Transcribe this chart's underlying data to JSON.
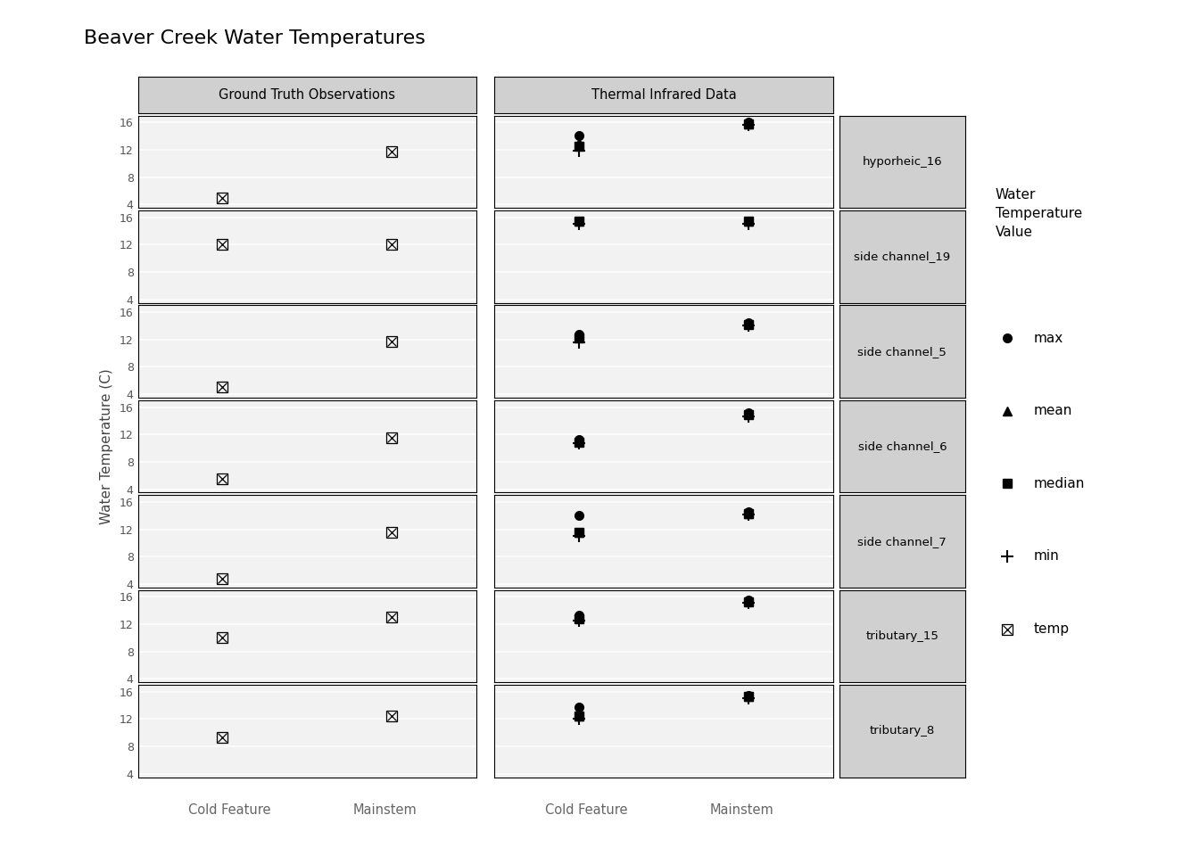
{
  "title": "Beaver Creek Water Temperatures",
  "ylabel": "Water Temperature (C)",
  "facet_col1": "Ground Truth Observations",
  "facet_col2": "Thermal Infrared Data",
  "rows": [
    "hyporheic_16",
    "side channel_19",
    "side channel_5",
    "side channel_6",
    "side channel_7",
    "tributary_15",
    "tributary_8"
  ],
  "ylim": [
    3.5,
    17.0
  ],
  "yticks": [
    4,
    8,
    12,
    16
  ],
  "panel_bg": "#f2f2f2",
  "strip_bg": "#d0d0d0",
  "header_bg": "#d0d0d0",
  "grid_color": "#ffffff",
  "data_gt": {
    "hyporheic_16": {
      "Cold Feature": {
        "temp": 5.0
      },
      "Mainstem": {
        "temp": 11.7
      }
    },
    "side channel_19": {
      "Cold Feature": {
        "temp": 12.0
      },
      "Mainstem": {
        "temp": 12.0
      }
    },
    "side channel_5": {
      "Cold Feature": {
        "temp": 5.0
      },
      "Mainstem": {
        "temp": 11.7
      }
    },
    "side channel_6": {
      "Cold Feature": {
        "temp": 5.5
      },
      "Mainstem": {
        "temp": 11.5
      }
    },
    "side channel_7": {
      "Cold Feature": {
        "temp": 4.8
      },
      "Mainstem": {
        "temp": 11.5
      }
    },
    "tributary_15": {
      "Cold Feature": {
        "temp": 10.0
      },
      "Mainstem": {
        "temp": 13.0
      }
    },
    "tributary_8": {
      "Cold Feature": {
        "temp": 9.3
      },
      "Mainstem": {
        "temp": 12.5
      }
    }
  },
  "data_tir": {
    "hyporheic_16": {
      "Cold Feature": {
        "max": 14.1,
        "mean": 13.0,
        "median": 12.5,
        "min": 11.8
      },
      "Mainstem": {
        "max": 16.0,
        "mean": 15.8,
        "median": 15.8,
        "min": 15.6
      }
    },
    "side channel_19": {
      "Cold Feature": {
        "median": 15.5,
        "mean": 15.5,
        "min": 15.0
      },
      "Mainstem": {
        "median": 15.5,
        "mean": 15.5,
        "min": 15.0
      }
    },
    "side channel_5": {
      "Cold Feature": {
        "max": 12.8,
        "mean": 12.3,
        "median": 12.2,
        "min": 11.6
      },
      "Mainstem": {
        "max": 14.5,
        "mean": 14.3,
        "median": 14.2,
        "min": 14.0
      }
    },
    "side channel_6": {
      "Cold Feature": {
        "max": 11.2,
        "mean": 11.0,
        "median": 10.9,
        "min": 10.7
      },
      "Mainstem": {
        "max": 15.2,
        "mean": 15.0,
        "median": 14.9,
        "min": 14.7
      }
    },
    "side channel_7": {
      "Cold Feature": {
        "max": 14.0,
        "mean": 11.5,
        "median": 11.5,
        "min": 11.0
      },
      "Mainstem": {
        "max": 14.5,
        "mean": 14.3,
        "median": 14.3,
        "min": 14.2
      }
    },
    "tributary_15": {
      "Cold Feature": {
        "max": 13.3,
        "mean": 12.9,
        "median": 12.8,
        "min": 12.5
      },
      "Mainstem": {
        "max": 15.5,
        "mean": 15.4,
        "median": 15.3,
        "min": 15.2
      }
    },
    "tributary_8": {
      "Cold Feature": {
        "max": 13.7,
        "mean": 12.5,
        "median": 12.4,
        "min": 12.1
      },
      "Mainstem": {
        "max": 15.5,
        "mean": 15.3,
        "median": 15.3,
        "min": 15.1
      }
    }
  }
}
